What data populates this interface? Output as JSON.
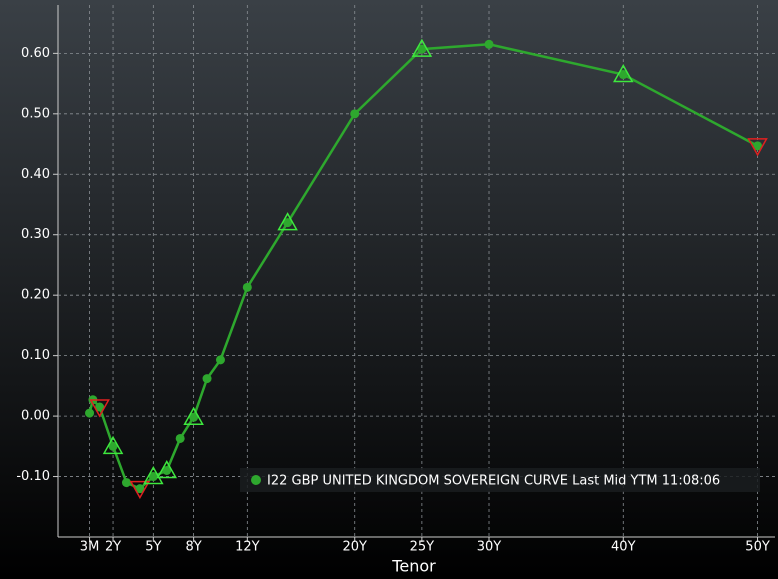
{
  "chart_data": {
    "type": "line",
    "x_label": "Tenor",
    "x": [
      0.25,
      0.5,
      1,
      2,
      3,
      4,
      5,
      6,
      7,
      8,
      9,
      10,
      12,
      15,
      20,
      25,
      30,
      40,
      50
    ],
    "series": [
      {
        "name": "I22 GBP UNITED KINGDOM SOVEREIGN CURVE Last Mid YTM 11:08:06",
        "color": "#2ea82e",
        "values": [
          0.005,
          0.027,
          0.015,
          -0.05,
          -0.11,
          -0.12,
          -0.1,
          -0.09,
          -0.037,
          -0.002,
          0.062,
          0.093,
          0.213,
          0.32,
          0.5,
          0.607,
          0.615,
          0.565,
          0.447
        ],
        "signals": [
          null,
          null,
          "down",
          "up",
          null,
          "down",
          "up",
          "up",
          null,
          "up",
          null,
          null,
          null,
          "up",
          null,
          "up",
          null,
          "up",
          "down"
        ]
      }
    ],
    "xlim": [
      -2.1,
      51.3
    ],
    "xticks": [
      {
        "value": 0.25,
        "label": "3M"
      },
      {
        "value": 2,
        "label": "2Y"
      },
      {
        "value": 5,
        "label": "5Y"
      },
      {
        "value": 8,
        "label": "8Y"
      },
      {
        "value": 12,
        "label": "12Y"
      },
      {
        "value": 20,
        "label": "20Y"
      },
      {
        "value": 25,
        "label": "25Y"
      },
      {
        "value": 30,
        "label": "30Y"
      },
      {
        "value": 40,
        "label": "40Y"
      },
      {
        "value": 50,
        "label": "50Y"
      }
    ],
    "ylim": [
      -0.2,
      0.68
    ],
    "yticks": [
      {
        "value": -0.1,
        "label": "-0.10"
      },
      {
        "value": 0,
        "label": "0.00"
      },
      {
        "value": 0.1,
        "label": "0.10"
      },
      {
        "value": 0.2,
        "label": "0.20"
      },
      {
        "value": 0.3,
        "label": "0.30"
      },
      {
        "value": 0.4,
        "label": "0.40"
      },
      {
        "value": 0.5,
        "label": "0.50"
      },
      {
        "value": 0.6,
        "label": "0.60"
      }
    ],
    "grid": true,
    "legend": "lower right"
  }
}
